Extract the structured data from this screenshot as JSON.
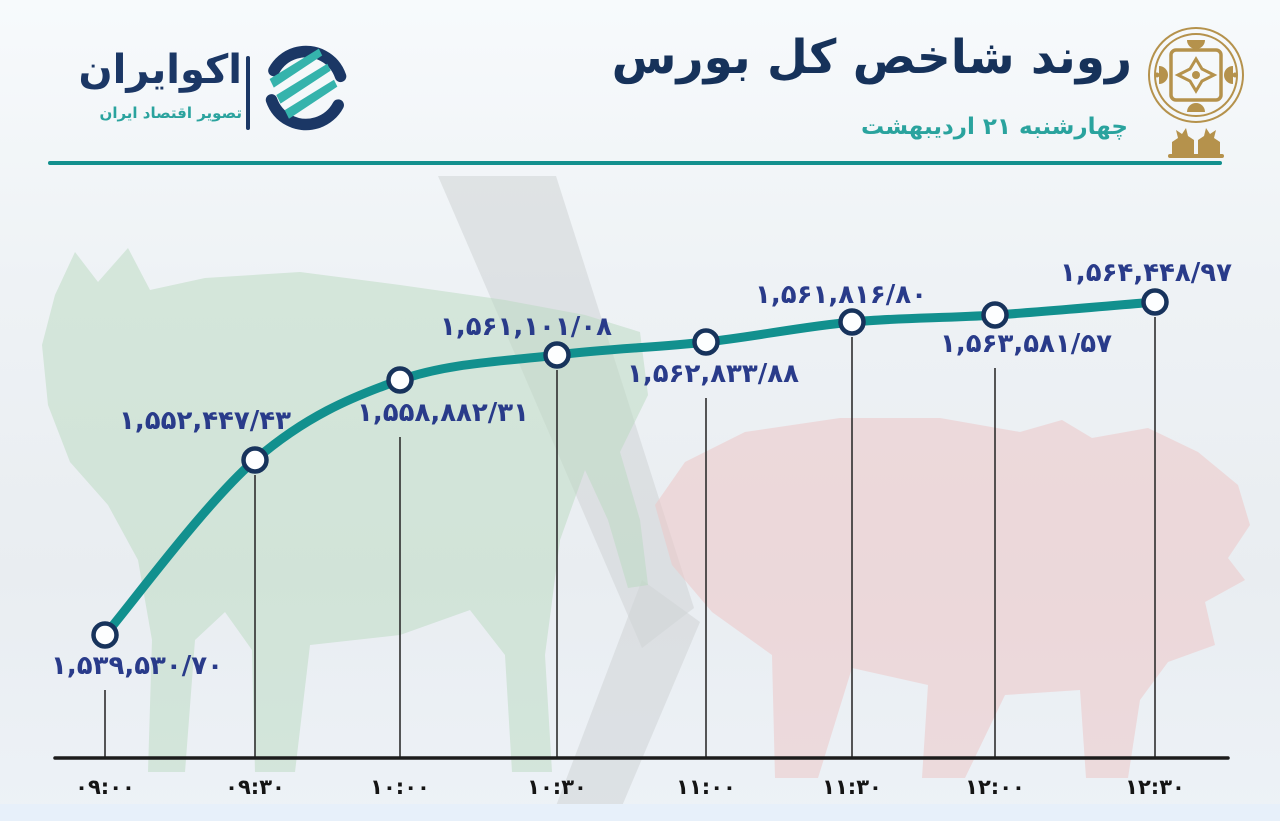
{
  "header": {
    "title": "روند شاخص کل بورس",
    "date": "چهارشنبه ۲۱ اردیبهشت",
    "brand": {
      "name": "اکوایران",
      "tagline": "تصویر اقتصاد ایران"
    }
  },
  "chart_data": {
    "type": "line",
    "title": "روند شاخص کل بورس",
    "categories": [
      "۰۹:۰۰",
      "۰۹:۳۰",
      "۱۰:۰۰",
      "۱۰:۳۰",
      "۱۱:۰۰",
      "۱۱:۳۰",
      "۱۲:۰۰",
      "۱۲:۳۰"
    ],
    "values": [
      1539530.7,
      1552447.43,
      1558882.31,
      1561101.08,
      1562833.88,
      1561816.8,
      1563581.57,
      1564448.97
    ],
    "value_labels": [
      "۱,۵۳۹,۵۳۰/۷۰",
      "۱,۵۵۲,۴۴۷/۴۳",
      "۱,۵۵۸,۸۸۲/۳۱",
      "۱,۵۶۱,۱۰۱/۰۸",
      "۱,۵۶۲,۸۳۳/۸۸",
      "۱,۵۶۱,۸۱۶/۸۰",
      "۱,۵۶۳,۵۸۱/۵۷",
      "۱,۵۶۴,۴۴۸/۹۷"
    ],
    "xlabel": "",
    "ylabel": "",
    "ylim": [
      1539000,
      1565000
    ],
    "grid": "off",
    "legend": "none"
  },
  "colors": {
    "line_teal": "#12908e",
    "label_blue": "#293b8a",
    "navy": "#1b3765",
    "date_teal": "#2aa39e",
    "gold": "#b5924c",
    "axis_black": "#1c1c1c",
    "bull_green": "#b9d9bf",
    "bear_pink": "#edc6c6"
  }
}
